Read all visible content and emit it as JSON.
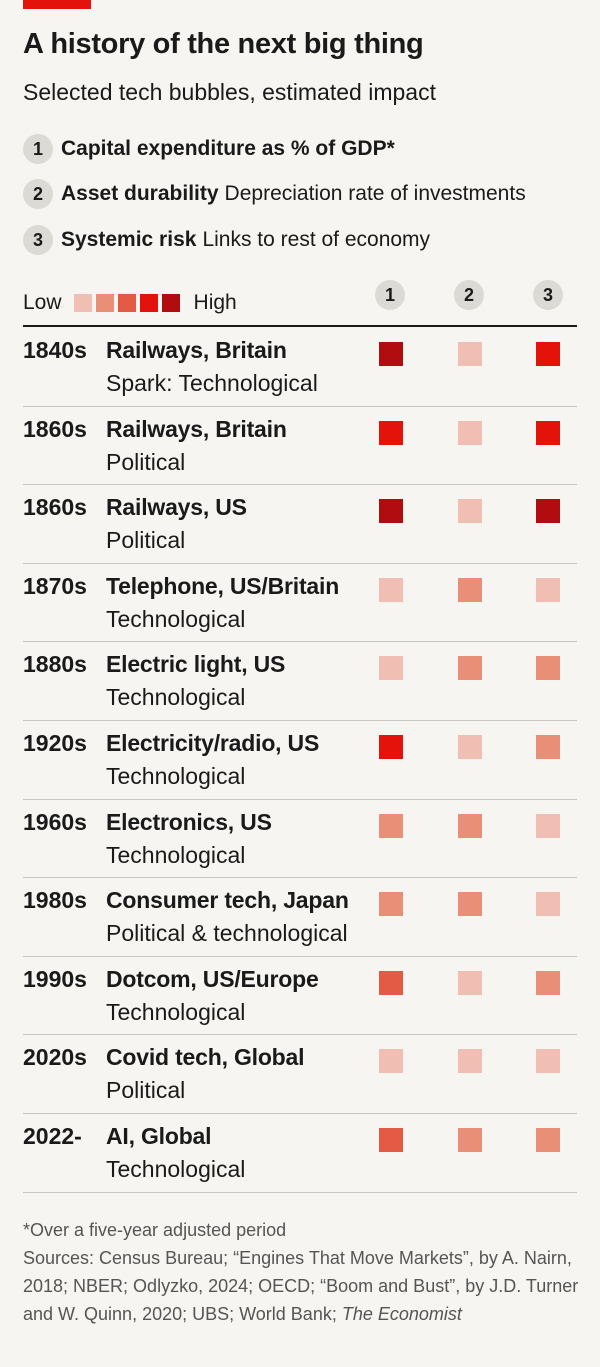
{
  "header": {
    "title": "A history of the next big thing",
    "subtitle": "Selected tech bubbles, estimated impact"
  },
  "key": [
    {
      "num": "1",
      "bold": "Capital expenditure as % of GDP*",
      "desc": ""
    },
    {
      "num": "2",
      "bold": "Asset durability",
      "desc": "Depreciation rate of investments"
    },
    {
      "num": "3",
      "bold": "Systemic risk",
      "desc": "Links to rest of economy"
    }
  ],
  "scale": {
    "low_label": "Low",
    "high_label": "High",
    "colors": [
      "#f0beb2",
      "#e98e77",
      "#e35b44",
      "#e3120b",
      "#b10d11"
    ]
  },
  "columns": [
    "1",
    "2",
    "3"
  ],
  "chart_data": {
    "type": "table",
    "levels_note": "1 = Low ... 5 = High",
    "rows": [
      {
        "year": "1840s",
        "name": "Railways, Britain",
        "spark": "Spark: Technological",
        "levels": [
          5,
          1,
          4
        ]
      },
      {
        "year": "1860s",
        "name": "Railways, Britain",
        "spark": "Political",
        "levels": [
          4,
          1,
          4
        ]
      },
      {
        "year": "1860s",
        "name": "Railways, US",
        "spark": "Political",
        "levels": [
          5,
          1,
          5
        ]
      },
      {
        "year": "1870s",
        "name": "Telephone, US/Britain",
        "spark": "Technological",
        "levels": [
          1,
          2,
          1
        ]
      },
      {
        "year": "1880s",
        "name": "Electric light, US",
        "spark": "Technological",
        "levels": [
          1,
          2,
          2
        ]
      },
      {
        "year": "1920s",
        "name": "Electricity/radio, US",
        "spark": "Technological",
        "levels": [
          4,
          1,
          2
        ]
      },
      {
        "year": "1960s",
        "name": "Electronics, US",
        "spark": "Technological",
        "levels": [
          2,
          2,
          1
        ]
      },
      {
        "year": "1980s",
        "name": "Consumer tech, Japan",
        "spark": "Political & technological",
        "levels": [
          2,
          2,
          1
        ]
      },
      {
        "year": "1990s",
        "name": "Dotcom, US/Europe",
        "spark": "Technological",
        "levels": [
          3,
          1,
          2
        ]
      },
      {
        "year": "2020s",
        "name": "Covid tech, Global",
        "spark": "Political",
        "levels": [
          1,
          1,
          1
        ]
      },
      {
        "year": "2022-",
        "name": "AI, Global",
        "spark": "Technological",
        "levels": [
          3,
          2,
          2
        ]
      }
    ]
  },
  "footnote": {
    "note": "*Over a five-year adjusted period",
    "sources": "Sources: Census Bureau; “Engines That Move Markets”, by A. Nairn, 2018; NBER; Odlyzko, 2024; OECD; “Boom and Bust”, by J.D. Turner and W. Quinn, 2020; UBS; World Bank;",
    "sources_italic": "The Economist"
  }
}
